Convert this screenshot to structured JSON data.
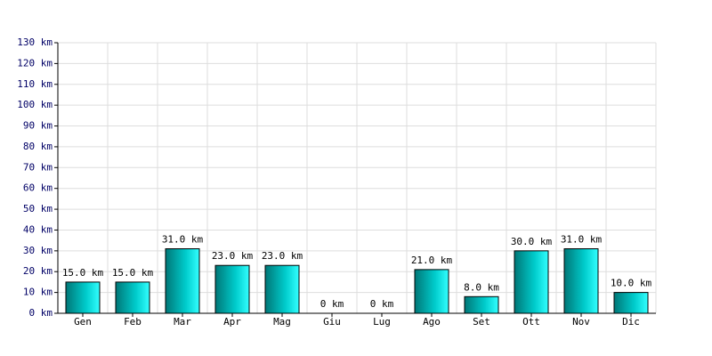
{
  "chart_data": {
    "type": "bar",
    "categories": [
      "Gen",
      "Feb",
      "Mar",
      "Apr",
      "Mag",
      "Giu",
      "Lug",
      "Ago",
      "Set",
      "Ott",
      "Nov",
      "Dic"
    ],
    "values": [
      15,
      15,
      31,
      23,
      23,
      0,
      0,
      21,
      8,
      30,
      31,
      10
    ],
    "value_labels": [
      "15.0 km",
      "15.0 km",
      "31.0 km",
      "23.0 km",
      "23.0 km",
      "0 km",
      "0 km",
      "21.0 km",
      "8.0 km",
      "30.0 km",
      "31.0 km",
      "10.0 km"
    ],
    "color": "#00cccc",
    "ylim": [
      0,
      130
    ],
    "yticks": [
      {
        "value": 0,
        "label": "0 km"
      },
      {
        "value": 10,
        "label": "10 km"
      },
      {
        "value": 20,
        "label": "20 km"
      },
      {
        "value": 30,
        "label": "30 km"
      },
      {
        "value": 40,
        "label": "40 km"
      },
      {
        "value": 50,
        "label": "50 km"
      },
      {
        "value": 60,
        "label": "60 km"
      },
      {
        "value": 70,
        "label": "70 km"
      },
      {
        "value": 80,
        "label": "80 km"
      },
      {
        "value": 90,
        "label": "90 km"
      },
      {
        "value": 100,
        "label": "100 km"
      },
      {
        "value": 110,
        "label": "110 km"
      },
      {
        "value": 120,
        "label": "120 km"
      },
      {
        "value": 130,
        "label": "130 km"
      }
    ],
    "grid": true
  }
}
